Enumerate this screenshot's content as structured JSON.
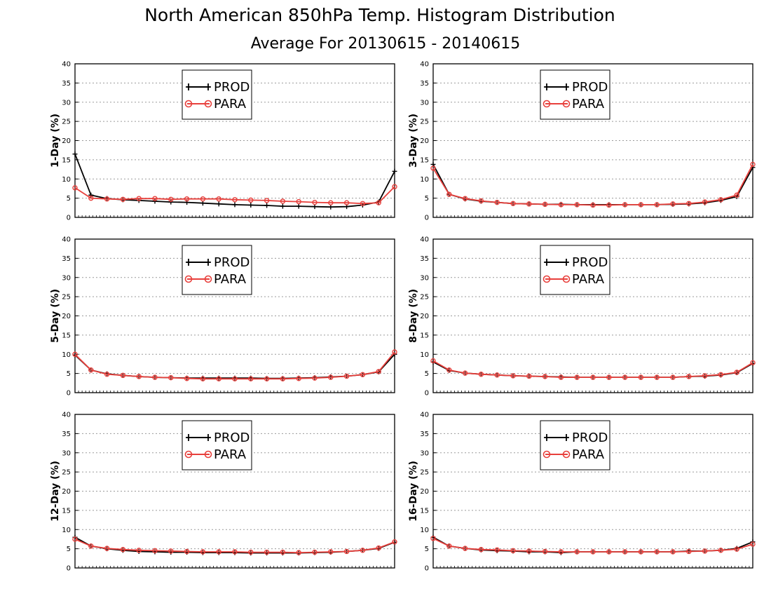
{
  "title": "North American 850hPa Temp. Histogram Distribution",
  "subtitle": "Average For 20130615 - 20140615",
  "legend": [
    "PROD",
    "PARA"
  ],
  "colors": {
    "PROD": "#000000",
    "PARA": "#e8403c",
    "grid": "#9a9a9a"
  },
  "chart_data": [
    {
      "type": "line",
      "ylabel": "1-Day (%)",
      "ylim": [
        0,
        40
      ],
      "yticks": [
        "0",
        "5",
        "10",
        "15",
        "20",
        "25",
        "30",
        "35",
        "40"
      ],
      "grid": true,
      "legend_placement": "top-center",
      "series": [
        {
          "name": "PROD",
          "values": [
            16.5,
            5.8,
            4.9,
            4.6,
            4.4,
            4.2,
            4.0,
            3.9,
            3.7,
            3.5,
            3.3,
            3.2,
            3.1,
            2.9,
            2.9,
            2.8,
            2.7,
            2.8,
            3.2,
            4.0,
            12.0
          ]
        },
        {
          "name": "PARA",
          "values": [
            7.7,
            5.0,
            4.8,
            4.7,
            4.9,
            4.9,
            4.7,
            4.8,
            4.8,
            4.8,
            4.6,
            4.5,
            4.4,
            4.2,
            4.1,
            3.9,
            3.8,
            3.8,
            3.6,
            3.8,
            8.0
          ]
        }
      ]
    },
    {
      "type": "line",
      "ylabel": "3-Day (%)",
      "ylim": [
        0,
        40
      ],
      "yticks": [
        "0",
        "5",
        "10",
        "15",
        "20",
        "25",
        "30",
        "35",
        "40"
      ],
      "grid": true,
      "legend_placement": "top-center",
      "series": [
        {
          "name": "PROD",
          "values": [
            13.8,
            6.0,
            4.8,
            4.2,
            3.9,
            3.6,
            3.5,
            3.4,
            3.4,
            3.3,
            3.3,
            3.3,
            3.3,
            3.3,
            3.3,
            3.4,
            3.5,
            3.8,
            4.4,
            5.4,
            13.0
          ]
        },
        {
          "name": "PARA",
          "values": [
            12.8,
            6.0,
            4.9,
            4.3,
            3.9,
            3.6,
            3.5,
            3.4,
            3.3,
            3.3,
            3.2,
            3.2,
            3.3,
            3.3,
            3.3,
            3.5,
            3.6,
            4.0,
            4.6,
            5.8,
            13.8
          ]
        }
      ]
    },
    {
      "type": "line",
      "ylabel": "5-Day (%)",
      "ylim": [
        0,
        40
      ],
      "yticks": [
        "0",
        "5",
        "10",
        "15",
        "20",
        "25",
        "30",
        "35",
        "40"
      ],
      "grid": true,
      "legend_placement": "top-center",
      "series": [
        {
          "name": "PROD",
          "values": [
            9.8,
            5.9,
            4.9,
            4.5,
            4.2,
            4.0,
            3.9,
            3.8,
            3.8,
            3.8,
            3.8,
            3.8,
            3.7,
            3.7,
            3.8,
            3.9,
            4.1,
            4.3,
            4.7,
            5.4,
            10.0
          ]
        },
        {
          "name": "PARA",
          "values": [
            10.0,
            5.9,
            4.8,
            4.5,
            4.2,
            4.0,
            3.9,
            3.7,
            3.6,
            3.6,
            3.6,
            3.6,
            3.6,
            3.6,
            3.7,
            3.8,
            4.0,
            4.3,
            4.7,
            5.5,
            10.6
          ]
        }
      ]
    },
    {
      "type": "line",
      "ylabel": "8-Day (%)",
      "ylim": [
        0,
        40
      ],
      "yticks": [
        "0",
        "5",
        "10",
        "15",
        "20",
        "25",
        "30",
        "35",
        "40"
      ],
      "grid": true,
      "legend_placement": "top-center",
      "series": [
        {
          "name": "PROD",
          "values": [
            8.0,
            5.8,
            5.1,
            4.8,
            4.6,
            4.4,
            4.3,
            4.2,
            4.1,
            4.0,
            4.0,
            4.0,
            4.0,
            4.0,
            4.0,
            4.0,
            4.2,
            4.3,
            4.6,
            5.2,
            7.6
          ]
        },
        {
          "name": "PARA",
          "values": [
            8.3,
            5.9,
            5.1,
            4.8,
            4.6,
            4.4,
            4.3,
            4.2,
            4.0,
            4.0,
            4.0,
            4.0,
            4.0,
            4.0,
            4.0,
            4.0,
            4.2,
            4.4,
            4.7,
            5.3,
            7.8
          ]
        }
      ]
    },
    {
      "type": "line",
      "ylabel": "12-Day (%)",
      "ylim": [
        0,
        40
      ],
      "yticks": [
        "0",
        "5",
        "10",
        "15",
        "20",
        "25",
        "30",
        "35",
        "40"
      ],
      "grid": true,
      "legend_placement": "top-center",
      "series": [
        {
          "name": "PROD",
          "values": [
            8.0,
            5.7,
            5.0,
            4.6,
            4.3,
            4.2,
            4.1,
            4.1,
            4.0,
            4.0,
            4.0,
            3.9,
            3.9,
            3.9,
            3.9,
            4.0,
            4.1,
            4.3,
            4.6,
            5.1,
            6.7
          ]
        },
        {
          "name": "PARA",
          "values": [
            7.5,
            5.7,
            5.1,
            4.8,
            4.6,
            4.5,
            4.4,
            4.3,
            4.2,
            4.2,
            4.2,
            4.1,
            4.1,
            4.1,
            4.0,
            4.1,
            4.2,
            4.3,
            4.6,
            5.2,
            6.8
          ]
        }
      ]
    },
    {
      "type": "line",
      "ylabel": "16-Day (%)",
      "ylim": [
        0,
        40
      ],
      "yticks": [
        "0",
        "5",
        "10",
        "15",
        "20",
        "25",
        "30",
        "35",
        "40"
      ],
      "grid": true,
      "legend_placement": "top-center",
      "series": [
        {
          "name": "PROD",
          "values": [
            8.0,
            5.7,
            5.1,
            4.7,
            4.5,
            4.4,
            4.2,
            4.2,
            4.0,
            4.2,
            4.2,
            4.2,
            4.2,
            4.2,
            4.2,
            4.2,
            4.4,
            4.4,
            4.6,
            5.1,
            6.8
          ]
        },
        {
          "name": "PARA",
          "values": [
            7.7,
            5.7,
            5.1,
            4.8,
            4.7,
            4.5,
            4.4,
            4.3,
            4.2,
            4.2,
            4.2,
            4.2,
            4.2,
            4.2,
            4.2,
            4.2,
            4.3,
            4.4,
            4.6,
            4.9,
            6.2
          ]
        }
      ]
    }
  ]
}
